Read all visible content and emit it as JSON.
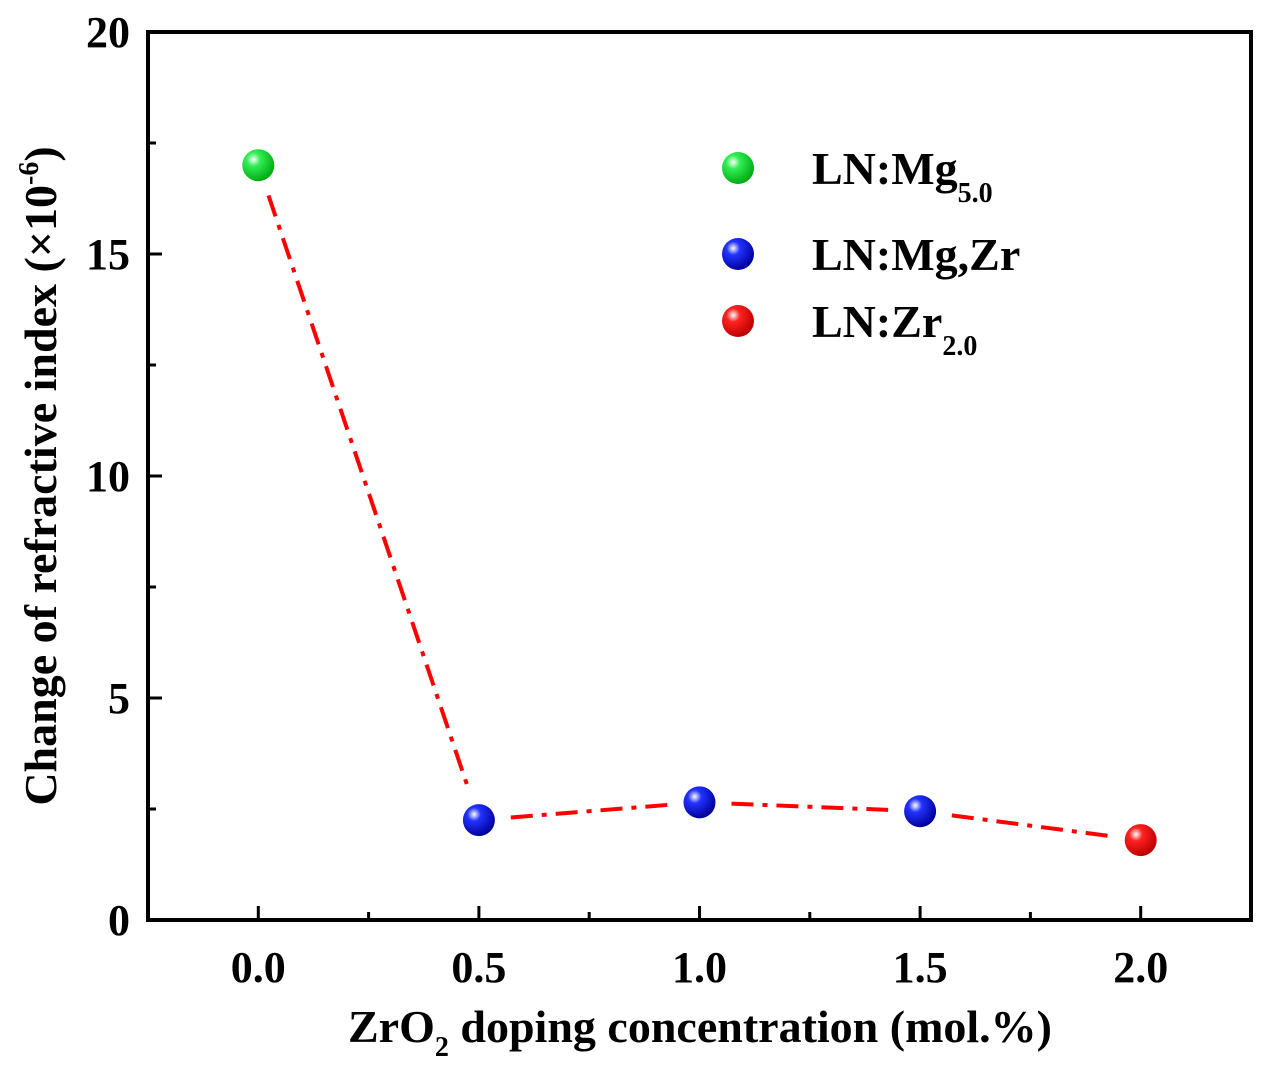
{
  "chart_data": {
    "type": "scatter",
    "title": "",
    "xlabel": {
      "pre": "ZrO",
      "sub": "2",
      "post": " doping concentration (mol.%)"
    },
    "ylabel": {
      "pre": "Change of refractive index (×10",
      "sup": "-6",
      "post": ")"
    },
    "xlim": [
      -0.25,
      2.25
    ],
    "ylim": [
      0,
      20
    ],
    "xticks": [
      0.0,
      0.5,
      1.0,
      1.5,
      2.0
    ],
    "xtick_labels": [
      "0.0",
      "0.5",
      "1.0",
      "1.5",
      "2.0"
    ],
    "yticks": [
      0,
      5,
      10,
      15,
      20
    ],
    "ytick_labels": [
      "0",
      "5",
      "10",
      "15",
      "20"
    ],
    "connector": {
      "style": "dash-dot",
      "color": "#ff0000"
    },
    "series": [
      {
        "name": "LN:Mg5.0",
        "label_main": "LN:Mg",
        "label_sub": "5.0",
        "color": "#00cc22",
        "x": [
          0.0
        ],
        "y": [
          17.0
        ]
      },
      {
        "name": "LN:Mg,Zr",
        "label_main": "LN:Mg,Zr",
        "label_sub": "",
        "color": "#0011dd",
        "x": [
          0.5,
          1.0,
          1.5
        ],
        "y": [
          2.25,
          2.65,
          2.45
        ]
      },
      {
        "name": "LN:Zr2.0",
        "label_main": "LN:Zr",
        "label_sub": "2.0",
        "color": "#ee1111",
        "x": [
          2.0
        ],
        "y": [
          1.8
        ]
      }
    ],
    "legend_position": "top-right"
  }
}
